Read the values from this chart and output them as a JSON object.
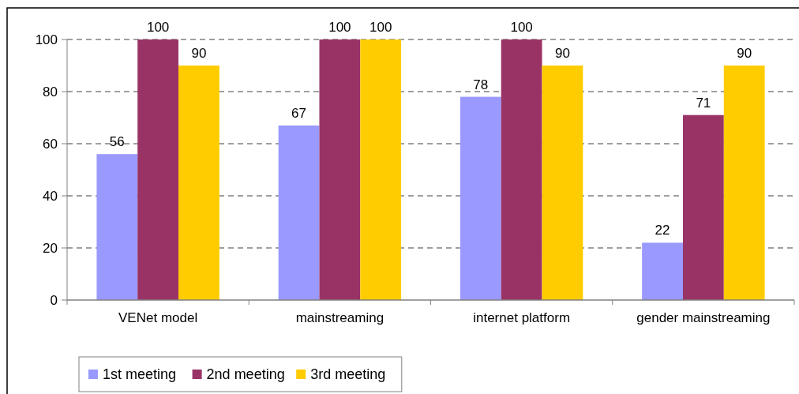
{
  "chart_data": {
    "type": "bar",
    "categories": [
      "VENet model",
      "mainstreaming",
      "internet platform",
      "gender mainstreaming"
    ],
    "series": [
      {
        "name": "1st meeting",
        "color": "#9999ff",
        "values": [
          56,
          67,
          78,
          22
        ]
      },
      {
        "name": "2nd meeting",
        "color": "#993366",
        "values": [
          100,
          100,
          100,
          71
        ]
      },
      {
        "name": "3rd meeting",
        "color": "#ffcc00",
        "values": [
          90,
          100,
          90,
          90
        ]
      }
    ],
    "ylim": [
      0,
      100
    ],
    "yticks": [
      0,
      20,
      40,
      60,
      80,
      100
    ],
    "grid": "y",
    "legend": "bottom",
    "data_labels": true
  }
}
